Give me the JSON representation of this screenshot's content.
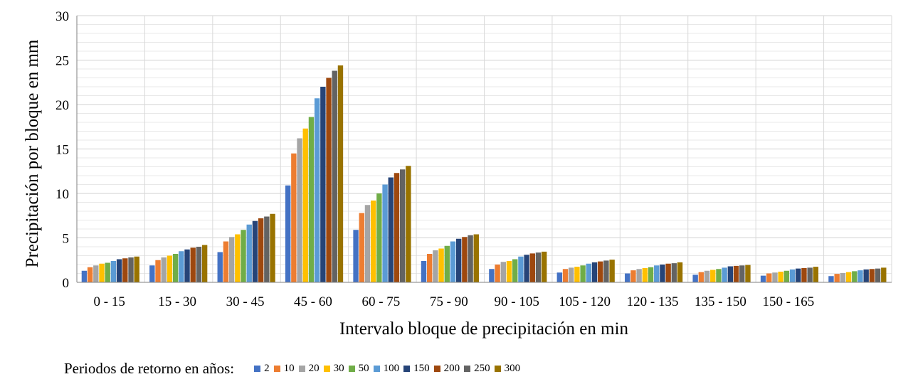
{
  "chart_data": {
    "type": "bar",
    "title": "",
    "xlabel": "Intervalo  bloque  de  precipitación  en min",
    "ylabel": "Precipitación  por  bloque  en mm",
    "ylim": [
      0,
      30
    ],
    "ytick_step": 5,
    "grid": true,
    "legend_title": "Periodos de retorno en años:",
    "legend_position": "bottom",
    "categories": [
      "0 - 15",
      "15 - 30",
      "30 - 45",
      "45 - 60",
      "60 - 75",
      "75 - 90",
      "90 - 105",
      "105 - 120",
      "120 - 135",
      "135 - 150",
      "150 - 165",
      ""
    ],
    "series": [
      {
        "name": "2",
        "color": "#4472C4",
        "values": [
          1.3,
          1.9,
          3.4,
          10.9,
          5.9,
          2.4,
          1.5,
          1.1,
          1.0,
          0.85,
          0.75,
          0.7
        ]
      },
      {
        "name": "10",
        "color": "#ED7D31",
        "values": [
          1.7,
          2.5,
          4.6,
          14.5,
          7.8,
          3.2,
          2.0,
          1.5,
          1.35,
          1.15,
          1.0,
          0.95
        ]
      },
      {
        "name": "20",
        "color": "#A5A5A5",
        "values": [
          1.9,
          2.8,
          5.1,
          16.2,
          8.7,
          3.6,
          2.3,
          1.65,
          1.5,
          1.3,
          1.1,
          1.05
        ]
      },
      {
        "name": "30",
        "color": "#FFC000",
        "values": [
          2.1,
          3.0,
          5.4,
          17.3,
          9.2,
          3.8,
          2.4,
          1.75,
          1.6,
          1.4,
          1.2,
          1.15
        ]
      },
      {
        "name": "50",
        "color": "#70AD47",
        "values": [
          2.2,
          3.2,
          5.9,
          18.6,
          10.0,
          4.1,
          2.6,
          1.9,
          1.7,
          1.5,
          1.3,
          1.25
        ]
      },
      {
        "name": "100",
        "color": "#5B9BD5",
        "values": [
          2.4,
          3.5,
          6.5,
          20.7,
          11.0,
          4.6,
          2.9,
          2.1,
          1.9,
          1.65,
          1.45,
          1.35
        ]
      },
      {
        "name": "150",
        "color": "#264478",
        "values": [
          2.6,
          3.7,
          6.9,
          22.0,
          11.8,
          4.9,
          3.1,
          2.25,
          2.0,
          1.8,
          1.55,
          1.45
        ]
      },
      {
        "name": "200",
        "color": "#9E480E",
        "values": [
          2.7,
          3.9,
          7.2,
          23.0,
          12.3,
          5.1,
          3.25,
          2.35,
          2.1,
          1.85,
          1.6,
          1.5
        ]
      },
      {
        "name": "250",
        "color": "#636363",
        "values": [
          2.8,
          4.0,
          7.4,
          23.8,
          12.7,
          5.3,
          3.35,
          2.45,
          2.15,
          1.9,
          1.65,
          1.55
        ]
      },
      {
        "name": "300",
        "color": "#997300",
        "values": [
          2.9,
          4.2,
          7.7,
          24.4,
          13.1,
          5.4,
          3.45,
          2.55,
          2.25,
          1.95,
          1.75,
          1.65
        ]
      }
    ]
  }
}
